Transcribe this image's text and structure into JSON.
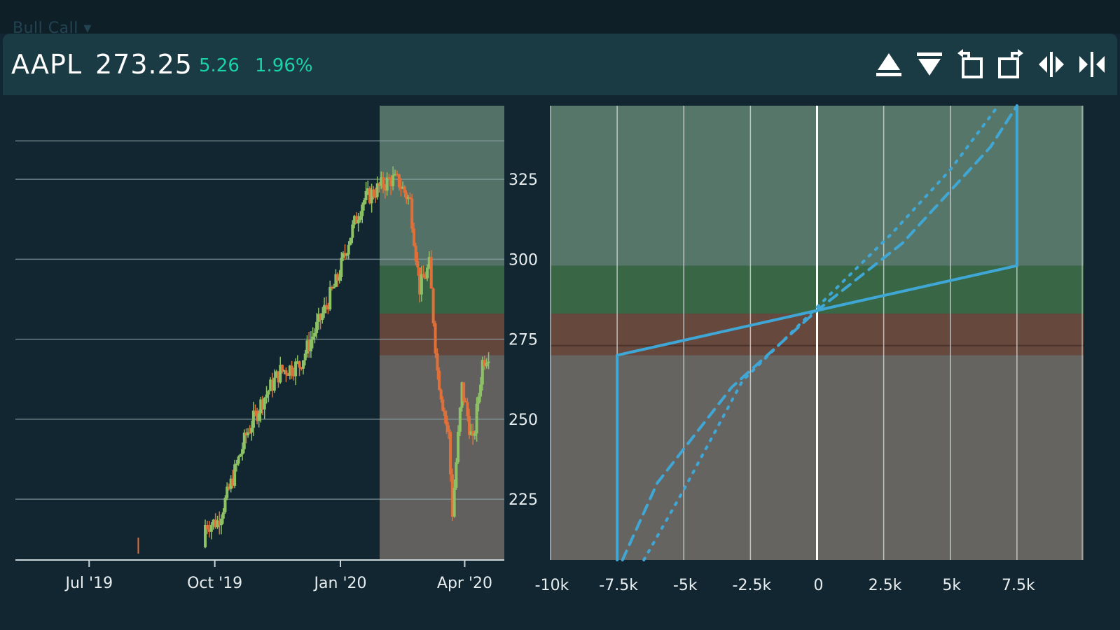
{
  "header": {
    "strategy_menu": "Bull Call ▾",
    "ticker": "AAPL",
    "price": "273.25",
    "change": "5.26",
    "change_pct": "1.96%"
  },
  "toolbar": {
    "icons": [
      "raise-icon",
      "lower-icon",
      "rotate-left-icon",
      "rotate-right-icon",
      "expand-horizontal-icon",
      "collapse-horizontal-icon"
    ]
  },
  "colors": {
    "background": "#112630",
    "header": "#1a3a44",
    "up_candle": "#8cc265",
    "down_candle": "#e0703a",
    "accent": "#19d3a6",
    "payoff_line": "#3fa7d6",
    "zone_profit": "#3c6a48",
    "zone_loss": "#6b4a3e",
    "zone_upper": "#5c7a6e",
    "zone_lower": "#6a6764"
  },
  "chart_data": [
    {
      "type": "candlestick",
      "x_ticks": [
        "Jul '19",
        "Oct '19",
        "Jan '20",
        "Apr '20"
      ],
      "y_ticks": [
        225,
        250,
        275,
        300,
        325
      ],
      "ylim": [
        206,
        348
      ],
      "grid": true,
      "close_series": [
        {
          "date": "2019-08-06",
          "value": 210
        },
        {
          "date": "2019-09-24",
          "value": 217
        },
        {
          "date": "2019-10-03",
          "value": 218
        },
        {
          "date": "2019-10-10",
          "value": 226
        },
        {
          "date": "2019-10-24",
          "value": 245
        },
        {
          "date": "2019-11-05",
          "value": 256
        },
        {
          "date": "2019-11-18",
          "value": 265
        },
        {
          "date": "2019-12-02",
          "value": 267
        },
        {
          "date": "2019-12-16",
          "value": 280
        },
        {
          "date": "2019-12-30",
          "value": 294
        },
        {
          "date": "2020-01-07",
          "value": 306
        },
        {
          "date": "2020-01-17",
          "value": 318
        },
        {
          "date": "2020-01-28",
          "value": 322
        },
        {
          "date": "2020-02-07",
          "value": 325
        },
        {
          "date": "2020-02-13",
          "value": 324
        },
        {
          "date": "2020-02-21",
          "value": 318
        },
        {
          "date": "2020-02-28",
          "value": 291
        },
        {
          "date": "2020-03-06",
          "value": 298
        },
        {
          "date": "2020-03-12",
          "value": 265
        },
        {
          "date": "2020-03-20",
          "value": 245
        },
        {
          "date": "2020-03-23",
          "value": 221
        },
        {
          "date": "2020-03-30",
          "value": 260
        },
        {
          "date": "2020-04-07",
          "value": 242
        },
        {
          "date": "2020-04-14",
          "value": 268
        },
        {
          "date": "2020-04-20",
          "value": 272
        }
      ],
      "zones": [
        {
          "name": "upper",
          "from": 298,
          "to": 348
        },
        {
          "name": "profit",
          "from": 283,
          "to": 298
        },
        {
          "name": "loss",
          "from": 270,
          "to": 283
        },
        {
          "name": "lower",
          "from": 206,
          "to": 270
        }
      ]
    },
    {
      "type": "line",
      "x_ticks": [
        "-10k",
        "-7.5k",
        "-5k",
        "-2.5k",
        "0",
        "2.5k",
        "5k",
        "7.5k"
      ],
      "x_tick_values": [
        -10000,
        -7500,
        -5000,
        -2500,
        0,
        2500,
        5000,
        7500
      ],
      "xlim": [
        -10000,
        10000
      ],
      "ylim": [
        206,
        348
      ],
      "series": [
        {
          "style": "solid",
          "points": [
            [
              -7500,
              206
            ],
            [
              -7500,
              270
            ],
            [
              0,
              284
            ],
            [
              7500,
              298
            ],
            [
              7500,
              348
            ]
          ]
        },
        {
          "style": "dashed",
          "points": [
            [
              -7300,
              206
            ],
            [
              -6000,
              230
            ],
            [
              -3200,
              260
            ],
            [
              0,
              284
            ],
            [
              3200,
              305
            ],
            [
              6500,
              335
            ],
            [
              7500,
              348
            ]
          ]
        },
        {
          "style": "dotted",
          "points": [
            [
              -6500,
              206
            ],
            [
              -5000,
              228
            ],
            [
              -2800,
              262
            ],
            [
              0,
              285
            ],
            [
              2800,
              308
            ],
            [
              5000,
              328
            ],
            [
              6800,
              348
            ]
          ]
        }
      ]
    }
  ]
}
